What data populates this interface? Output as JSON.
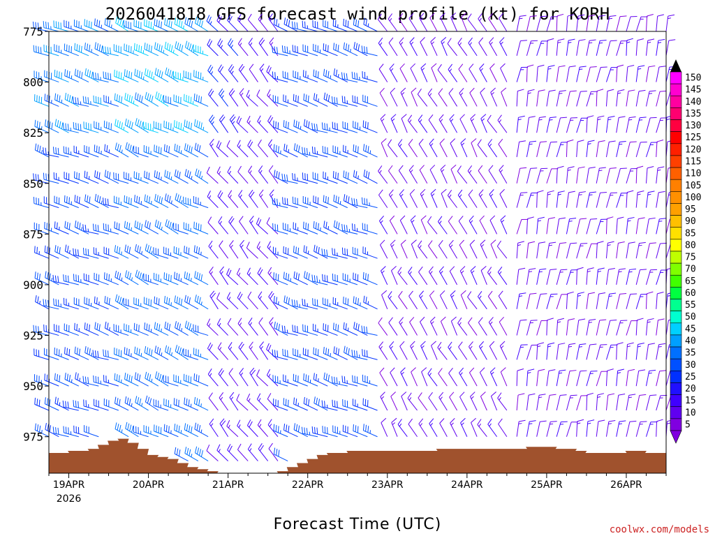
{
  "chart_data": {
    "type": "wind-barb-profile",
    "title": "2026041818 GFS forecast wind profile (kt) for KORH",
    "xlabel": "Forecast Time (UTC)",
    "credit": "coolwx.com/models",
    "x_ticks": [
      {
        "label": "19APR",
        "sub": "2026",
        "hour": 6
      },
      {
        "label": "20APR",
        "sub": "",
        "hour": 30
      },
      {
        "label": "21APR",
        "sub": "",
        "hour": 54
      },
      {
        "label": "22APR",
        "sub": "",
        "hour": 78
      },
      {
        "label": "23APR",
        "sub": "",
        "hour": 102
      },
      {
        "label": "24APR",
        "sub": "",
        "hour": 126
      },
      {
        "label": "25APR",
        "sub": "",
        "hour": 150
      },
      {
        "label": "26APR",
        "sub": "",
        "hour": 174
      }
    ],
    "x_range_hours": [
      0,
      186
    ],
    "y_ticks": [
      775,
      800,
      825,
      850,
      875,
      900,
      925,
      950,
      975
    ],
    "y_range_hPa": [
      775,
      993
    ],
    "levels_hPa": [
      775,
      787,
      800,
      812,
      825,
      837,
      850,
      862,
      875,
      887,
      900,
      912,
      925,
      937,
      950,
      962,
      975,
      987
    ],
    "times_hours": [
      0,
      3,
      6,
      9,
      12,
      15,
      18,
      21,
      24,
      27,
      30,
      33,
      36,
      39,
      42,
      45,
      48,
      51,
      54,
      57,
      60,
      63,
      66,
      69,
      72,
      75,
      78,
      81,
      84,
      87,
      90,
      93,
      96,
      99,
      102,
      105,
      108,
      111,
      114,
      117,
      120,
      123,
      126,
      129,
      132,
      135,
      138,
      141,
      144,
      147,
      150,
      153,
      156,
      159,
      162,
      165,
      168,
      171,
      174,
      177,
      180,
      183,
      186
    ],
    "surface_pressure_hPa": [
      983,
      983,
      982,
      982,
      981,
      979,
      977,
      976,
      978,
      981,
      984,
      985,
      986,
      988,
      990,
      991,
      992,
      994,
      996,
      996,
      997,
      994,
      993,
      992,
      990,
      988,
      986,
      984,
      983,
      983,
      982,
      982,
      982,
      982,
      982,
      982,
      982,
      982,
      982,
      981,
      981,
      981,
      981,
      981,
      981,
      981,
      981,
      981,
      980,
      980,
      980,
      981,
      981,
      982,
      983,
      983,
      983,
      983,
      982,
      982,
      983,
      983,
      983
    ],
    "colorbar": {
      "units": "kt",
      "labels": [
        "150",
        "145",
        "140",
        "135",
        "130",
        "125",
        "120",
        "115",
        "110",
        "105",
        "100",
        "95",
        "90",
        "85",
        "80",
        "75",
        "70",
        "65",
        "60",
        "55",
        "50",
        "45",
        "40",
        "35",
        "30",
        "25",
        "20",
        "15",
        "10",
        "5"
      ],
      "colors": [
        "#ff00ff",
        "#ff00d0",
        "#ff00a0",
        "#ff0070",
        "#ff0040",
        "#ff0000",
        "#ff2000",
        "#ff4000",
        "#ff6000",
        "#ff8000",
        "#ff9000",
        "#ffa000",
        "#ffc000",
        "#ffe000",
        "#ffff00",
        "#c0ff00",
        "#80ff00",
        "#40ff00",
        "#00ff40",
        "#00ff90",
        "#00ffd0",
        "#00d0ff",
        "#00a0ff",
        "#0070ff",
        "#0050ff",
        "#0030ff",
        "#2010ff",
        "#4000ff",
        "#6000f0",
        "#8000e0"
      ]
    },
    "terrain_color": "#a0522d",
    "wind_regimes": [
      {
        "period": "19APR",
        "direction_deg": 290,
        "speed_kt": 30
      },
      {
        "period": "20APR",
        "direction_deg": 295,
        "speed_kt": 35
      },
      {
        "period": "21APR",
        "direction_deg": 320,
        "speed_kt": 15
      },
      {
        "period": "22APR",
        "direction_deg": 290,
        "speed_kt": 30
      },
      {
        "period": "23-24APR",
        "direction_deg": 330,
        "speed_kt": 12
      },
      {
        "period": "25-26APR",
        "direction_deg": 10,
        "speed_kt": 12
      }
    ]
  }
}
